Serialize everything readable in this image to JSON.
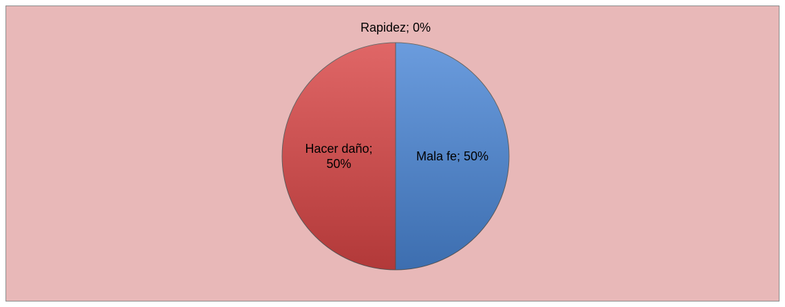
{
  "chart_data": {
    "type": "pie",
    "categories": [
      "Mala fe",
      "Hacer daño",
      "Rapidez"
    ],
    "values": [
      50,
      50,
      0
    ],
    "value_labels": [
      "Mala fe; 50%",
      "Hacer daño; 50%",
      "Rapidez; 0%"
    ],
    "colors": [
      "#4a86d6",
      "#d94545",
      "#9bbb59"
    ]
  }
}
